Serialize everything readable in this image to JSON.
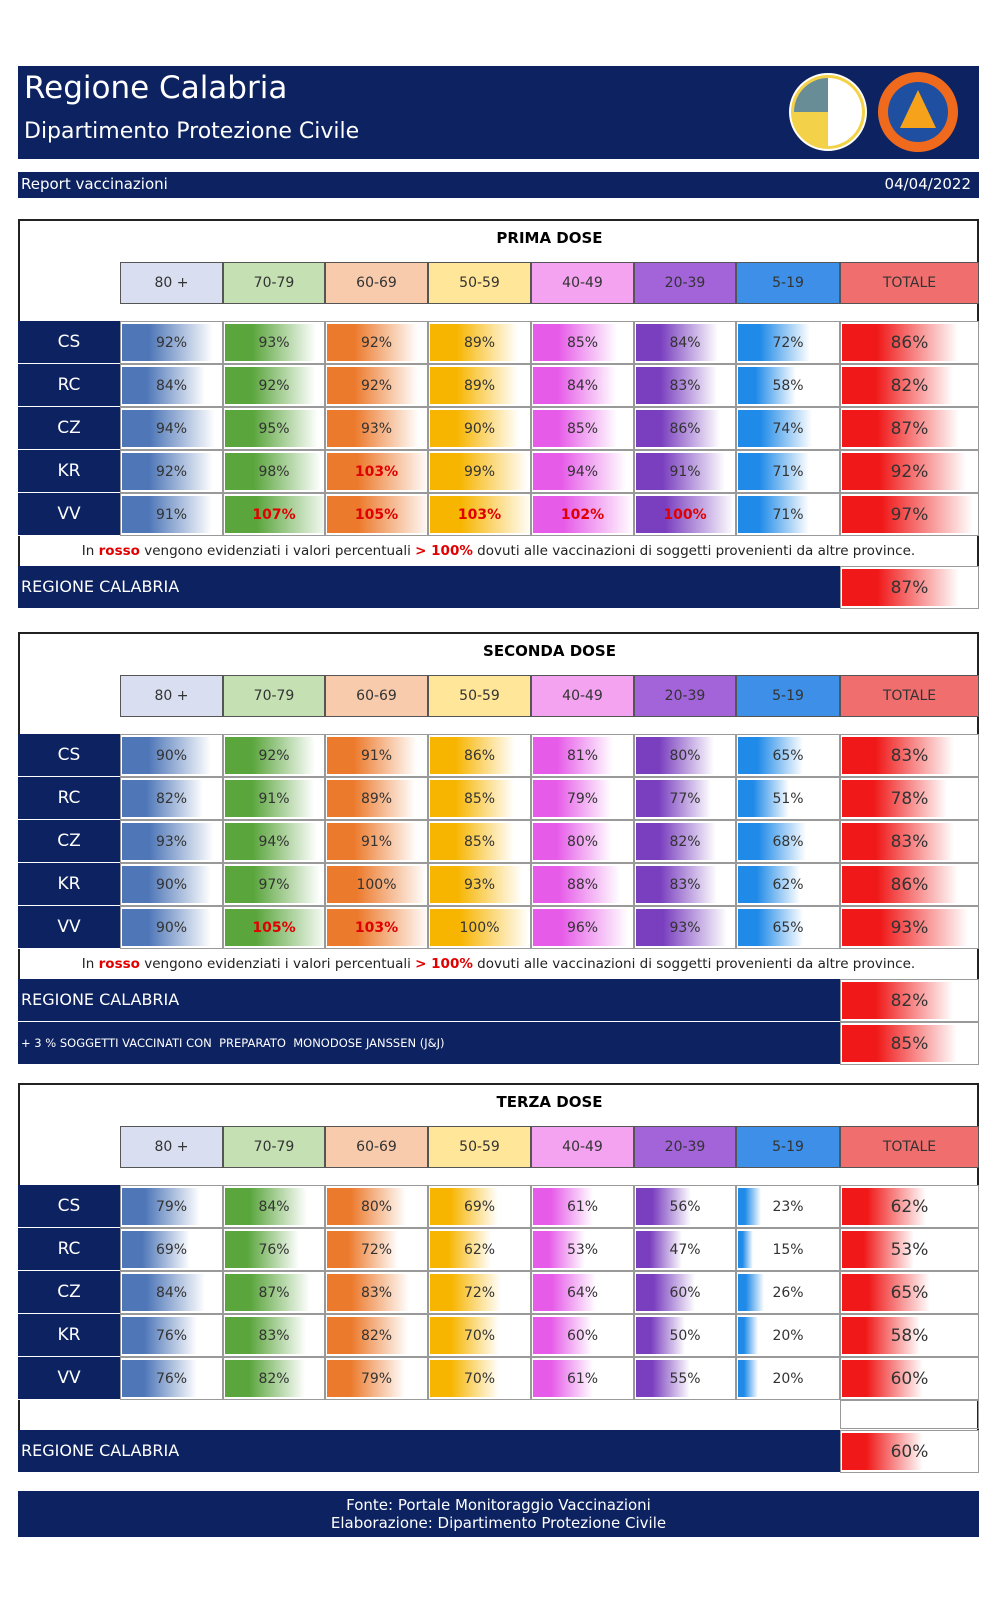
{
  "header": {
    "title": "Regione Calabria",
    "subtitle": "Dipartimento Protezione Civile",
    "report": "Report vaccinazioni",
    "date": "04/04/2022"
  },
  "columns": [
    "80 +",
    "70-79",
    "60-69",
    "50-59",
    "40-49",
    "20-39",
    "5-19",
    "TOTALE"
  ],
  "header_colors": [
    "#d9dff0",
    "#c5e0b3",
    "#f8cbad",
    "#ffe699",
    "#f4a3f0",
    "#a363d9",
    "#3d8fe8",
    "#f06e6e"
  ],
  "bar_colors": [
    "#4f77b8",
    "#5aa53c",
    "#ec7a2c",
    "#f7b500",
    "#e65be8",
    "#7a3fbf",
    "#1f8ae8",
    "#f01818"
  ],
  "sections": [
    {
      "title": "PRIMA DOSE",
      "rows": [
        {
          "label": "CS",
          "cells": [
            "92%",
            "93%",
            "92%",
            "89%",
            "85%",
            "84%",
            "72%",
            "86%"
          ]
        },
        {
          "label": "RC",
          "cells": [
            "84%",
            "92%",
            "92%",
            "89%",
            "84%",
            "83%",
            "58%",
            "82%"
          ]
        },
        {
          "label": "CZ",
          "cells": [
            "94%",
            "95%",
            "93%",
            "90%",
            "85%",
            "86%",
            "74%",
            "87%"
          ]
        },
        {
          "label": "KR",
          "cells": [
            "92%",
            "98%",
            {
              "value": "103%",
              "color": "#e00000"
            },
            "99%",
            "94%",
            "91%",
            "71%",
            "92%"
          ]
        },
        {
          "label": "VV",
          "cells": [
            "91%",
            {
              "value": "107%",
              "color": "#e00000"
            },
            {
              "value": "105%",
              "color": "#e00000"
            },
            {
              "value": "103%",
              "color": "#e00000"
            },
            {
              "value": "102%",
              "color": "#e00000"
            },
            {
              "value": "100%",
              "color": "#e00000"
            },
            "71%",
            "97%"
          ]
        }
      ],
      "note": [
        "In ",
        "rosso",
        " vengono evidenziati i valori percentuali ",
        "> 100%",
        " dovuti alle vaccinazioni di soggetti provenienti da altre province."
      ],
      "totals": [
        {
          "label": "REGIONE CALABRIA",
          "value": "87%"
        }
      ]
    },
    {
      "title": "SECONDA DOSE",
      "rows": [
        {
          "label": "CS",
          "cells": [
            "90%",
            "92%",
            "91%",
            "86%",
            "81%",
            "80%",
            "65%",
            "83%"
          ]
        },
        {
          "label": "RC",
          "cells": [
            "82%",
            "91%",
            "89%",
            "85%",
            "79%",
            "77%",
            "51%",
            "78%"
          ]
        },
        {
          "label": "CZ",
          "cells": [
            "93%",
            "94%",
            "91%",
            "85%",
            "80%",
            "82%",
            "68%",
            "83%"
          ]
        },
        {
          "label": "KR",
          "cells": [
            "90%",
            "97%",
            "100%",
            "93%",
            "88%",
            "83%",
            "62%",
            "86%"
          ]
        },
        {
          "label": "VV",
          "cells": [
            "90%",
            {
              "value": "105%",
              "color": "#e00000"
            },
            {
              "value": "103%",
              "color": "#e00000"
            },
            "100%",
            "96%",
            "93%",
            "65%",
            "93%"
          ]
        }
      ],
      "note": [
        "In ",
        "rosso",
        " vengono evidenziati i valori percentuali ",
        "> 100%",
        " dovuti alle vaccinazioni di soggetti provenienti da altre province."
      ],
      "totals": [
        {
          "label": "REGIONE CALABRIA",
          "value": "82%"
        },
        {
          "label": "+ 3 % SOGGETTI VACCINATI CON  PREPARATO  MONODOSE JANSSEN (J&J)",
          "value": "85%"
        }
      ]
    },
    {
      "title": "TERZA DOSE",
      "rows": [
        {
          "label": "CS",
          "cells": [
            "79%",
            "84%",
            "80%",
            "69%",
            "61%",
            "56%",
            "23%",
            "62%"
          ]
        },
        {
          "label": "RC",
          "cells": [
            "69%",
            "76%",
            "72%",
            "62%",
            "53%",
            "47%",
            "15%",
            "53%"
          ]
        },
        {
          "label": "CZ",
          "cells": [
            "84%",
            "87%",
            "83%",
            "72%",
            "64%",
            "60%",
            "26%",
            "65%"
          ]
        },
        {
          "label": "KR",
          "cells": [
            "76%",
            "83%",
            "82%",
            "70%",
            "60%",
            "50%",
            "20%",
            "58%"
          ]
        },
        {
          "label": "VV",
          "cells": [
            "76%",
            "82%",
            "79%",
            "70%",
            "61%",
            "55%",
            "20%",
            "60%"
          ]
        }
      ],
      "totals": [
        {
          "label": "REGIONE CALABRIA",
          "value": "60%"
        }
      ]
    }
  ],
  "footer": [
    "Fonte: Portale Monitoraggio Vaccinazioni",
    "Elaborazione: Dipartimento Protezione Civile"
  ]
}
